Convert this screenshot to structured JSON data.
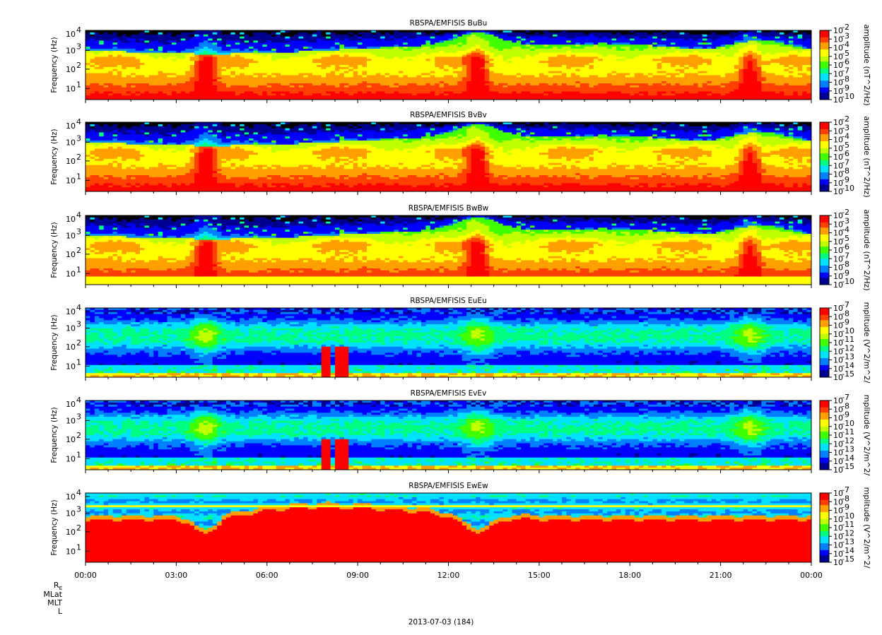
{
  "colors": {
    "rainbow": [
      "#000090",
      "#0000ff",
      "#0080ff",
      "#00e0ff",
      "#00ff80",
      "#40ff00",
      "#c0ff00",
      "#ffff00",
      "#ffa000",
      "#ff4000",
      "#ff0000"
    ]
  },
  "chart_data": [
    {
      "type": "heatmap",
      "title": "RBSPA/EMFISIS  BuBu",
      "ylabel": "Frequency (Hz)",
      "yscale": "log",
      "yticks": [
        "10",
        "10",
        "10",
        "10"
      ],
      "ytick_exps": [
        "1",
        "2",
        "3",
        "4"
      ],
      "x_ticks": [
        "00:00",
        "03:00",
        "06:00",
        "09:00",
        "12:00",
        "15:00",
        "18:00",
        "21:00",
        "00:00"
      ],
      "colorbar_label": "amplitude (nT^2/Hz)",
      "colorbar_ticks": [
        "10",
        "10",
        "10",
        "10",
        "10",
        "10",
        "10",
        "10",
        "10"
      ],
      "colorbar_exps": [
        "-2",
        "-3",
        "-4",
        "-5",
        "-6",
        "-7",
        "-8",
        "-9",
        "-10"
      ],
      "kind": "B"
    },
    {
      "type": "heatmap",
      "title": "RBSPA/EMFISIS  BvBv",
      "ylabel": "Frequency (Hz)",
      "yscale": "log",
      "yticks": [
        "10",
        "10",
        "10",
        "10"
      ],
      "ytick_exps": [
        "1",
        "2",
        "3",
        "4"
      ],
      "x_ticks": [
        "00:00",
        "03:00",
        "06:00",
        "09:00",
        "12:00",
        "15:00",
        "18:00",
        "21:00",
        "00:00"
      ],
      "colorbar_label": "amplitude (nT^2/Hz)",
      "colorbar_ticks": [
        "10",
        "10",
        "10",
        "10",
        "10",
        "10",
        "10",
        "10",
        "10"
      ],
      "colorbar_exps": [
        "-2",
        "-3",
        "-4",
        "-5",
        "-6",
        "-7",
        "-8",
        "-9",
        "-10"
      ],
      "kind": "B"
    },
    {
      "type": "heatmap",
      "title": "RBSPA/EMFISIS  BwBw",
      "ylabel": "Frequency (Hz)",
      "yscale": "log",
      "yticks": [
        "10",
        "10",
        "10",
        "10"
      ],
      "ytick_exps": [
        "1",
        "2",
        "3",
        "4"
      ],
      "x_ticks": [
        "00:00",
        "03:00",
        "06:00",
        "09:00",
        "12:00",
        "15:00",
        "18:00",
        "21:00",
        "00:00"
      ],
      "colorbar_label": "amplitude (nT^2/Hz)",
      "colorbar_ticks": [
        "10",
        "10",
        "10",
        "10",
        "10",
        "10",
        "10",
        "10",
        "10"
      ],
      "colorbar_exps": [
        "-2",
        "-3",
        "-4",
        "-5",
        "-6",
        "-7",
        "-8",
        "-9",
        "-10"
      ],
      "kind": "Bw"
    },
    {
      "type": "heatmap",
      "title": "RBSPA/EMFISIS  EuEu",
      "ylabel": "Frequency (Hz)",
      "yscale": "log",
      "yticks": [
        "10",
        "10",
        "10",
        "10"
      ],
      "ytick_exps": [
        "1",
        "2",
        "3",
        "4"
      ],
      "x_ticks": [
        "00:00",
        "03:00",
        "06:00",
        "09:00",
        "12:00",
        "15:00",
        "18:00",
        "21:00",
        "00:00"
      ],
      "colorbar_label": "mplitude (V^2/m^2/",
      "colorbar_ticks": [
        "10",
        "10",
        "10",
        "10",
        "10",
        "10",
        "10",
        "10",
        "10"
      ],
      "colorbar_exps": [
        "-7",
        "-8",
        "-9",
        "-10",
        "-11",
        "-12",
        "-13",
        "-14",
        "-15"
      ],
      "kind": "E"
    },
    {
      "type": "heatmap",
      "title": "RBSPA/EMFISIS  EvEv",
      "ylabel": "Frequency (Hz)",
      "yscale": "log",
      "yticks": [
        "10",
        "10",
        "10",
        "10"
      ],
      "ytick_exps": [
        "1",
        "2",
        "3",
        "4"
      ],
      "x_ticks": [
        "00:00",
        "03:00",
        "06:00",
        "09:00",
        "12:00",
        "15:00",
        "18:00",
        "21:00",
        "00:00"
      ],
      "colorbar_label": "mplitude (V^2/m^2/",
      "colorbar_ticks": [
        "10",
        "10",
        "10",
        "10",
        "10",
        "10",
        "10",
        "10",
        "10"
      ],
      "colorbar_exps": [
        "-7",
        "-8",
        "-9",
        "-10",
        "-11",
        "-12",
        "-13",
        "-14",
        "-15"
      ],
      "kind": "E"
    },
    {
      "type": "heatmap",
      "title": "RBSPA/EMFISIS  EwEw",
      "ylabel": "Frequency (Hz)",
      "yscale": "log",
      "yticks": [
        "10",
        "10",
        "10",
        "10"
      ],
      "ytick_exps": [
        "1",
        "2",
        "3",
        "4"
      ],
      "x_ticks": [
        "00:00",
        "03:00",
        "06:00",
        "09:00",
        "12:00",
        "15:00",
        "18:00",
        "21:00",
        "00:00"
      ],
      "colorbar_label": "mplitude (V^2/m^2/",
      "colorbar_ticks": [
        "10",
        "10",
        "10",
        "10",
        "10",
        "10",
        "10",
        "10",
        "10"
      ],
      "colorbar_exps": [
        "-7",
        "-8",
        "-9",
        "-10",
        "-11",
        "-12",
        "-13",
        "-14",
        "-15"
      ],
      "kind": "Ew"
    }
  ],
  "ephemeris_labels": {
    "re": "R",
    "re_sub": "E",
    "mlat": "MLat",
    "mlt": "MLT",
    "l": "L"
  },
  "footer_date": "2013-07-03 (184)"
}
